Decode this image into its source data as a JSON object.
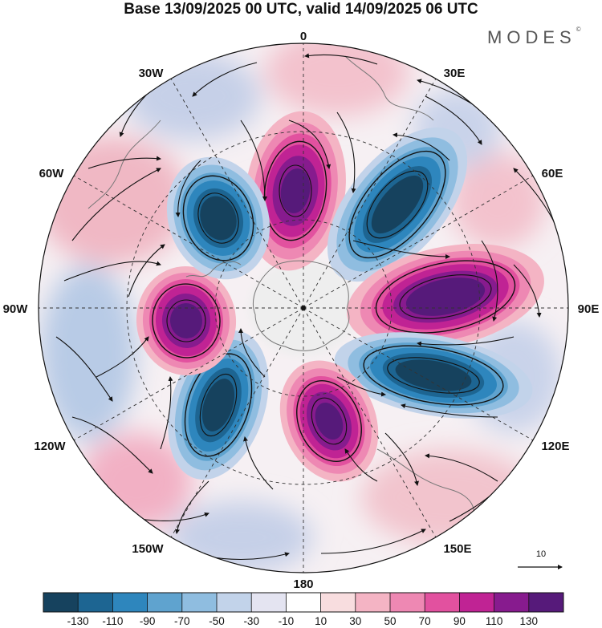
{
  "title": "Base 13/09/2025 00 UTC, valid 14/09/2025 06 UTC",
  "brand": "MODES",
  "brand_mark": "©",
  "longitude_labels": {
    "l0": "0",
    "l30e": "30E",
    "l60e": "60E",
    "l90e": "90E",
    "l120e": "120E",
    "l150e": "150E",
    "l180": "180",
    "l150w": "150W",
    "l120w": "120W",
    "l90w": "90W",
    "l60w": "60W",
    "l30w": "30W"
  },
  "reference_vector": {
    "label": "10"
  },
  "colorbar": {
    "colors": [
      "#16425e",
      "#1d6592",
      "#2e86bd",
      "#5fa3cf",
      "#8fbde0",
      "#c2d3ea",
      "#e4e4f1",
      "#ffffff",
      "#f8dddf",
      "#f4b4c4",
      "#ee88b3",
      "#e2519f",
      "#c02394",
      "#871b8e",
      "#561a7a"
    ],
    "ticks": [
      "-130",
      "-110",
      "-90",
      "-70",
      "-50",
      "-30",
      "-10",
      "10",
      "30",
      "50",
      "70",
      "90",
      "110",
      "130"
    ]
  },
  "palette": {
    "land_gray": "#ececec",
    "grid": "#333333",
    "coast": "#777777"
  }
}
